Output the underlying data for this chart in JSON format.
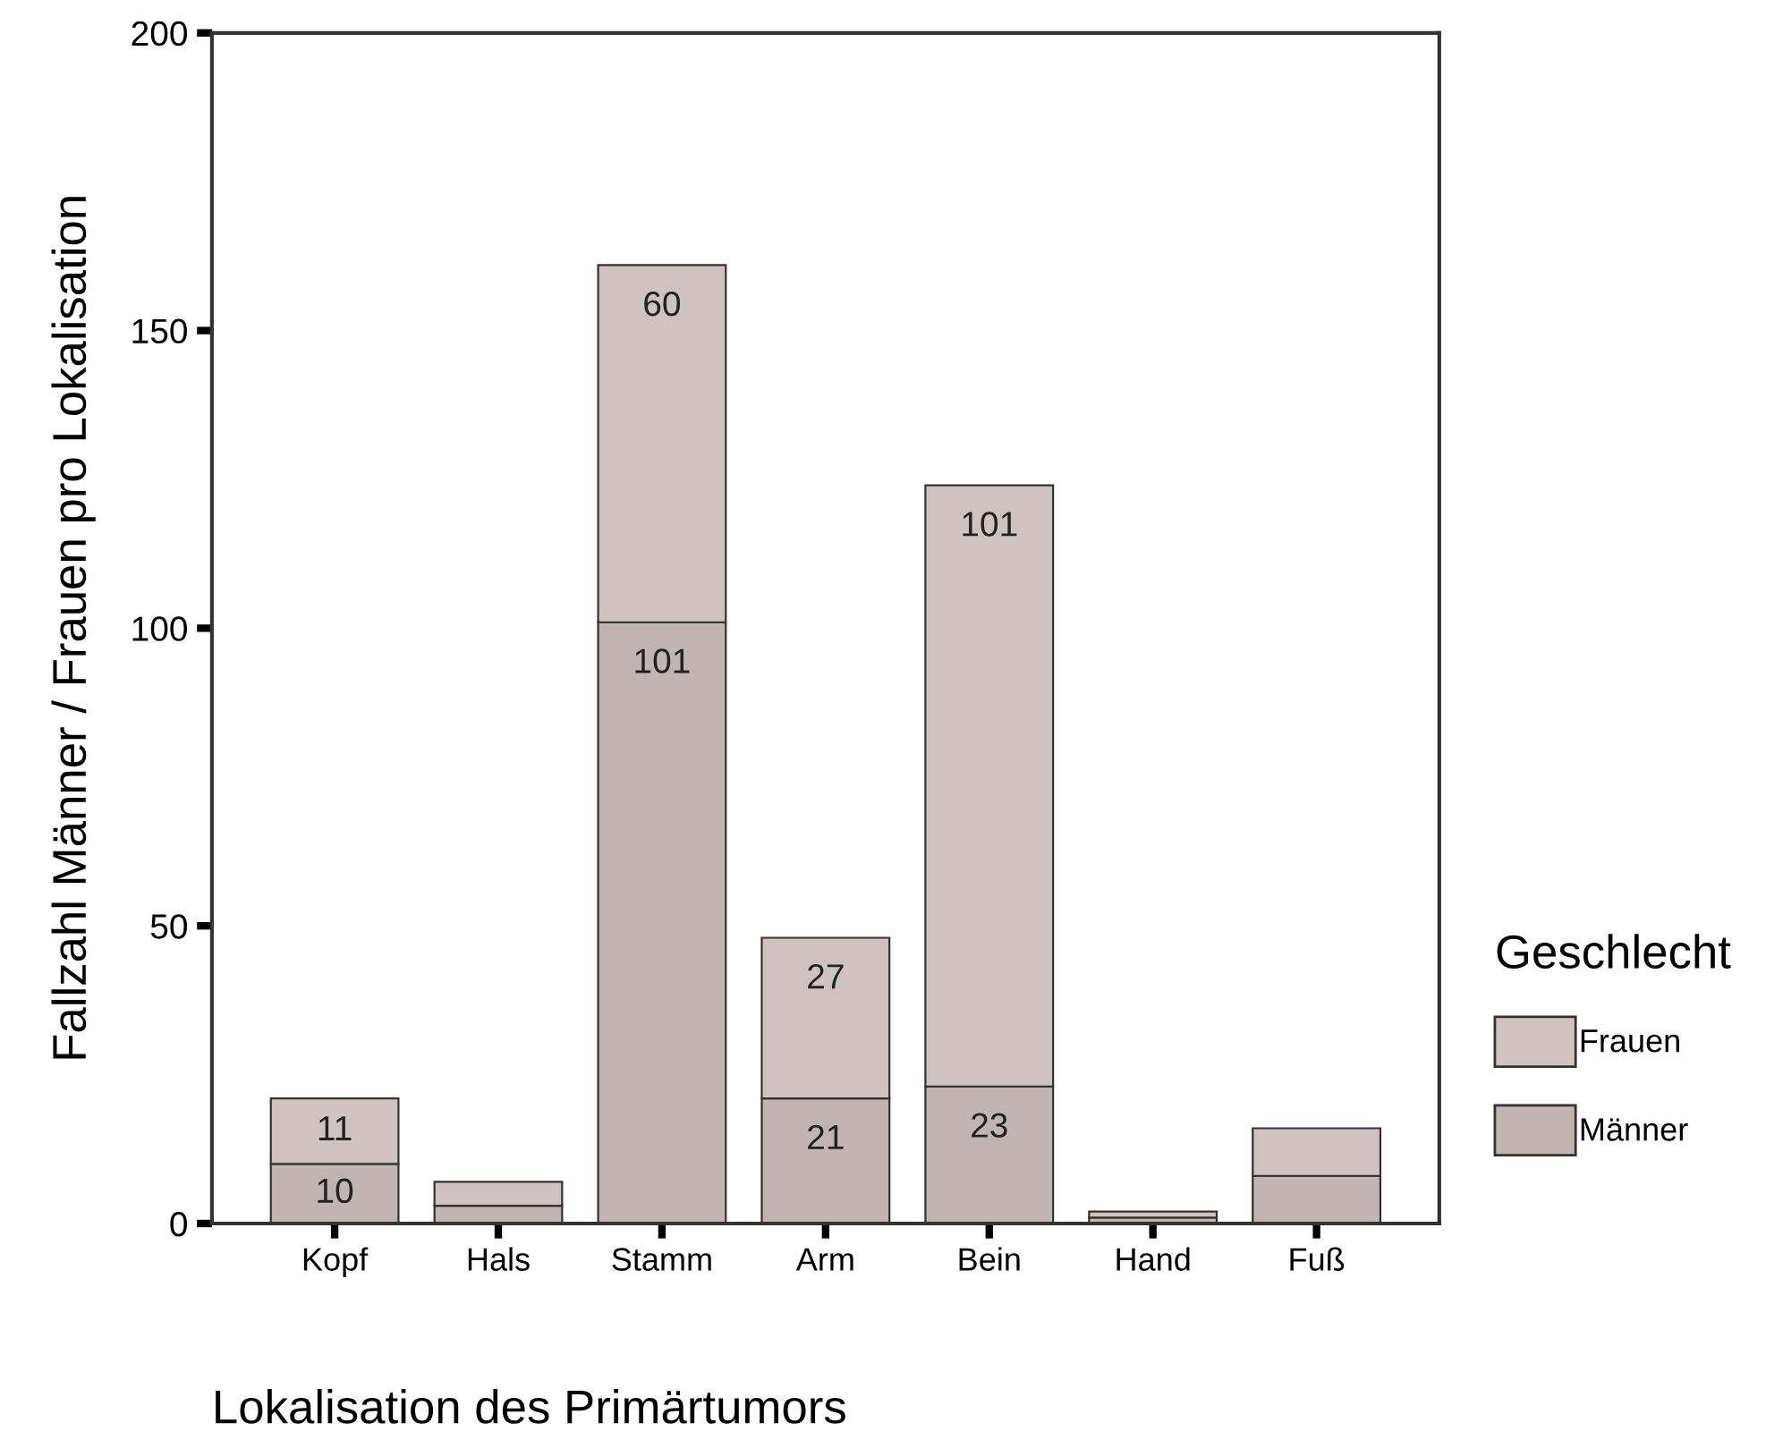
{
  "chart_data": {
    "type": "bar",
    "stacked": true,
    "xlabel": "Lokalisation des Primärtumors",
    "ylabel": "Fallzahl Männer / Frauen pro Lokalisation",
    "legend_title": "Geschlecht",
    "legend": "right",
    "categories": [
      "Kopf",
      "Hals",
      "Stamm",
      "Arm",
      "Bein",
      "Hand",
      "Fuß"
    ],
    "series": [
      {
        "name": "Männer",
        "color": "#c1b5b3",
        "values": [
          10,
          3,
          101,
          21,
          23,
          1,
          8
        ],
        "value_labels": [
          "10",
          null,
          "101",
          "21",
          "23",
          null,
          null
        ]
      },
      {
        "name": "Frauen",
        "color": "#cfc3c1",
        "values": [
          11,
          4,
          60,
          27,
          101,
          1,
          8
        ],
        "value_labels": [
          "11",
          null,
          "60",
          "27",
          "101",
          null,
          null
        ]
      }
    ],
    "ylim": [
      0,
      200
    ],
    "yticks": [
      0,
      50,
      100,
      150,
      200
    ],
    "grid": false
  }
}
